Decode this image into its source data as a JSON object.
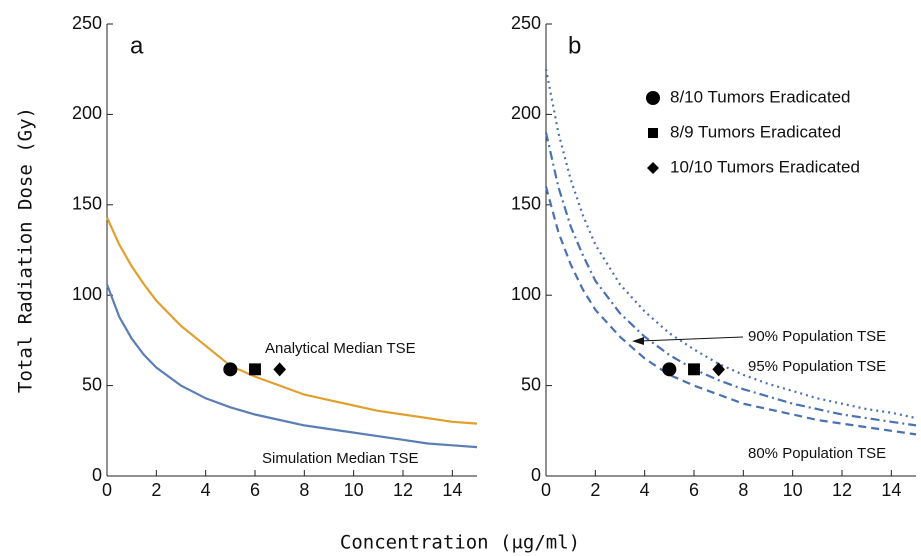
{
  "ylabel": "Total Radiation Dose (Gy)",
  "xlabel": "Concentration (μg/ml)",
  "chart_data": [
    {
      "type": "line",
      "panel_label": "a",
      "xlim": [
        0,
        15
      ],
      "ylim": [
        0,
        250
      ],
      "xticks": [
        0,
        2,
        4,
        6,
        8,
        10,
        12,
        14
      ],
      "yticks": [
        0,
        50,
        100,
        150,
        200,
        250
      ],
      "annotations": [
        "Analytical Median TSE",
        "Simulation Median TSE"
      ],
      "series": [
        {
          "color": "#e0a030",
          "style": "solid",
          "x": [
            0,
            0.5,
            1,
            1.5,
            2,
            3,
            4,
            5,
            6,
            7,
            8,
            9,
            10,
            11,
            12,
            13,
            14,
            15
          ],
          "values": [
            143,
            128,
            116,
            106,
            97,
            83,
            72,
            61,
            55,
            50,
            45,
            42,
            39,
            36,
            34,
            32,
            30,
            29
          ]
        },
        {
          "color": "#5b7fb5",
          "style": "solid",
          "x": [
            0,
            0.5,
            1,
            1.5,
            2,
            3,
            4,
            5,
            6,
            7,
            8,
            9,
            10,
            11,
            12,
            13,
            14,
            15
          ],
          "values": [
            106,
            88,
            76,
            67,
            60,
            50,
            43,
            38,
            34,
            31,
            28,
            26,
            24,
            22,
            20,
            18,
            17,
            16
          ]
        },
        {
          "color": "#000000",
          "marker": "circle",
          "x": [
            5
          ],
          "values": [
            59
          ]
        },
        {
          "color": "#000000",
          "marker": "square",
          "x": [
            6
          ],
          "values": [
            59
          ]
        },
        {
          "color": "#000000",
          "marker": "diamond",
          "x": [
            7
          ],
          "values": [
            59
          ]
        }
      ]
    },
    {
      "type": "line",
      "panel_label": "b",
      "xlim": [
        0,
        15
      ],
      "ylim": [
        0,
        250
      ],
      "xticks": [
        0,
        2,
        4,
        6,
        8,
        10,
        12,
        14
      ],
      "yticks": [
        0,
        50,
        100,
        150,
        200,
        250
      ],
      "legend": "upper right",
      "annotations": [
        "90% Population TSE",
        "95% Population TSE",
        "80% Population TSE"
      ],
      "series": [
        {
          "color": "#4a72b0",
          "style": "dashed",
          "x": [
            0,
            0.5,
            1,
            1.5,
            2,
            3,
            4,
            5,
            6,
            7,
            8,
            9,
            10,
            11,
            12,
            13,
            14,
            15
          ],
          "values": [
            160,
            135,
            117,
            103,
            92,
            77,
            65,
            56,
            50,
            45,
            40,
            37,
            34,
            31,
            29,
            27,
            25,
            23
          ]
        },
        {
          "color": "#4a72b0",
          "style": "dashdot",
          "x": [
            0,
            0.5,
            1,
            1.5,
            2,
            3,
            4,
            5,
            6,
            7,
            8,
            9,
            10,
            11,
            12,
            13,
            14,
            15
          ],
          "values": [
            190,
            160,
            138,
            122,
            108,
            90,
            77,
            67,
            59,
            53,
            48,
            44,
            40,
            37,
            34,
            32,
            30,
            28
          ]
        },
        {
          "color": "#4a72b0",
          "style": "dotted",
          "x": [
            0,
            0.5,
            1,
            1.5,
            2,
            3,
            4,
            5,
            6,
            7,
            8,
            9,
            10,
            11,
            12,
            13,
            14,
            15
          ],
          "values": [
            225,
            190,
            164,
            144,
            128,
            106,
            91,
            79,
            70,
            62,
            56,
            51,
            47,
            43,
            40,
            37,
            35,
            32
          ]
        },
        {
          "name": "8/10  Tumors Eradicated",
          "color": "#000000",
          "marker": "circle",
          "x": [
            5
          ],
          "values": [
            59
          ]
        },
        {
          "name": "8/9 Tumors Eradicated",
          "color": "#000000",
          "marker": "square",
          "x": [
            6
          ],
          "values": [
            59
          ]
        },
        {
          "name": "10/10  Tumors Eradicated",
          "color": "#000000",
          "marker": "diamond",
          "x": [
            7
          ],
          "values": [
            59
          ]
        }
      ]
    }
  ]
}
